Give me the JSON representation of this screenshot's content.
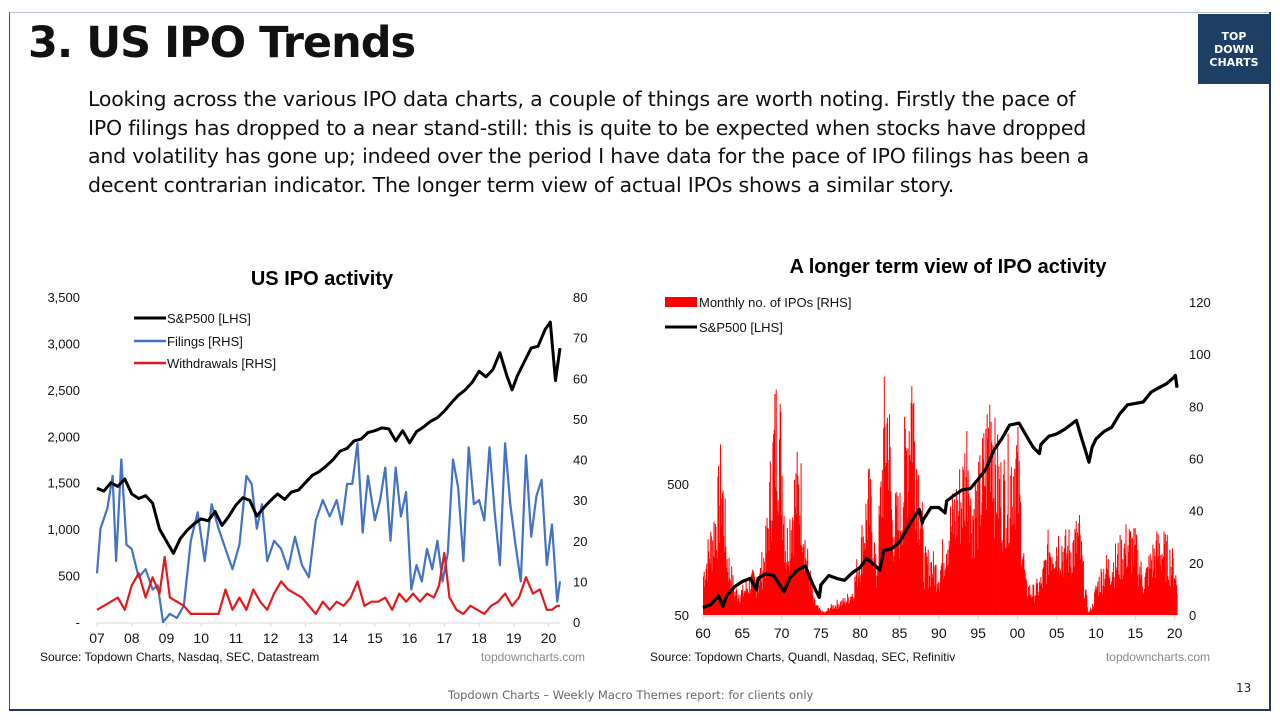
{
  "slide": {
    "title": "3. US IPO Trends",
    "logo_lines": [
      "TOP",
      "DOWN",
      "CHARTS"
    ],
    "intro_lines": [
      "Looking across the various IPO data charts, a couple of things are worth noting.  Firstly the pace of",
      "IPO filings has dropped to a near stand-still: this is quite to be expected when stocks have dropped",
      "and volatility has gone up; indeed over the period I have data for the pace of IPO filings has been a",
      "decent contrarian indicator.  The longer term view of actual IPOs shows a similar story."
    ],
    "footer": "Topdown Charts – Weekly Macro Themes report: for clients only",
    "page_number": "13",
    "colors": {
      "navy": "#1c3f63",
      "sp500": "#000000",
      "filings": "#4472c4",
      "withdrawals": "#e31a1c",
      "ipos": "#ff0000"
    }
  },
  "chart_data": [
    {
      "type": "line",
      "title": "US IPO activity",
      "source": "Source: Topdown Charts, Nasdaq, SEC, Datastream",
      "watermark": "topdowncharts.com",
      "x_ticks": [
        "07",
        "08",
        "09",
        "10",
        "11",
        "12",
        "13",
        "14",
        "15",
        "16",
        "17",
        "18",
        "19",
        "20"
      ],
      "x_range": [
        2007.0,
        2020.33
      ],
      "left_axis": {
        "ticks": [
          "-",
          "500",
          "1,000",
          "1,500",
          "2,000",
          "2,500",
          "3,000",
          "3,500"
        ],
        "tick_values": [
          0,
          500,
          1000,
          1500,
          2000,
          2500,
          3000,
          3500
        ],
        "range": [
          0,
          3500
        ]
      },
      "right_axis": {
        "ticks": [
          "0",
          "10",
          "20",
          "30",
          "40",
          "50",
          "60",
          "70",
          "80"
        ],
        "tick_values": [
          0,
          10,
          20,
          30,
          40,
          50,
          60,
          70,
          80
        ],
        "range": [
          0,
          80
        ]
      },
      "legend": [
        "S&P500 [LHS]",
        "Filings [RHS]",
        "Withdrawals [RHS]"
      ],
      "legend_position": "top-left",
      "series": [
        {
          "name": "S&P500 [LHS]",
          "axis": "left",
          "color": "#000000",
          "x": [
            2007.0,
            2007.2,
            2007.4,
            2007.6,
            2007.8,
            2008.0,
            2008.2,
            2008.4,
            2008.6,
            2008.8,
            2009.0,
            2009.2,
            2009.4,
            2009.6,
            2009.8,
            2010.0,
            2010.2,
            2010.4,
            2010.6,
            2010.8,
            2011.0,
            2011.2,
            2011.4,
            2011.6,
            2011.8,
            2012.0,
            2012.2,
            2012.4,
            2012.6,
            2012.8,
            2013.0,
            2013.2,
            2013.4,
            2013.6,
            2013.8,
            2014.0,
            2014.2,
            2014.4,
            2014.6,
            2014.8,
            2015.0,
            2015.2,
            2015.4,
            2015.6,
            2015.8,
            2016.0,
            2016.2,
            2016.4,
            2016.6,
            2016.8,
            2017.0,
            2017.2,
            2017.4,
            2017.6,
            2017.8,
            2018.0,
            2018.2,
            2018.4,
            2018.6,
            2018.8,
            2018.95,
            2019.1,
            2019.3,
            2019.5,
            2019.7,
            2019.9,
            2020.05,
            2020.2,
            2020.33
          ],
          "values": [
            1440,
            1410,
            1500,
            1460,
            1540,
            1380,
            1330,
            1360,
            1280,
            1000,
            870,
            740,
            900,
            990,
            1060,
            1110,
            1090,
            1190,
            1040,
            1140,
            1260,
            1340,
            1310,
            1140,
            1230,
            1310,
            1380,
            1320,
            1400,
            1420,
            1500,
            1580,
            1620,
            1680,
            1750,
            1840,
            1870,
            1950,
            1970,
            2040,
            2060,
            2090,
            2080,
            1950,
            2060,
            1930,
            2050,
            2100,
            2160,
            2200,
            2270,
            2360,
            2440,
            2500,
            2580,
            2700,
            2640,
            2720,
            2900,
            2650,
            2500,
            2650,
            2800,
            2950,
            2970,
            3150,
            3230,
            2600,
            2950
          ]
        },
        {
          "name": "Filings [RHS]",
          "axis": "right",
          "color": "#4472c4",
          "x": [
            2007.0,
            2007.1,
            2007.3,
            2007.45,
            2007.55,
            2007.7,
            2007.85,
            2008.0,
            2008.2,
            2008.4,
            2008.6,
            2008.75,
            2008.9,
            2009.1,
            2009.3,
            2009.5,
            2009.7,
            2009.9,
            2010.1,
            2010.3,
            2010.5,
            2010.7,
            2010.9,
            2011.1,
            2011.3,
            2011.45,
            2011.6,
            2011.75,
            2011.9,
            2012.1,
            2012.3,
            2012.5,
            2012.7,
            2012.9,
            2013.1,
            2013.3,
            2013.5,
            2013.7,
            2013.9,
            2014.05,
            2014.2,
            2014.35,
            2014.5,
            2014.65,
            2014.8,
            2015.0,
            2015.15,
            2015.3,
            2015.45,
            2015.6,
            2015.75,
            2015.9,
            2016.05,
            2016.2,
            2016.35,
            2016.5,
            2016.65,
            2016.8,
            2016.95,
            2017.1,
            2017.25,
            2017.4,
            2017.55,
            2017.7,
            2017.85,
            2018.0,
            2018.15,
            2018.3,
            2018.45,
            2018.6,
            2018.75,
            2018.9,
            2019.05,
            2019.2,
            2019.35,
            2019.5,
            2019.65,
            2019.8,
            2019.95,
            2020.1,
            2020.25,
            2020.33
          ],
          "values": [
            12,
            23,
            28,
            36,
            15,
            40,
            19,
            18,
            11,
            13,
            8,
            9,
            0,
            2,
            1,
            4,
            20,
            27,
            15,
            29,
            23,
            18,
            13,
            19,
            36,
            34,
            23,
            29,
            15,
            20,
            18,
            13,
            21,
            14,
            11,
            25,
            30,
            26,
            30,
            24,
            34,
            34,
            44,
            22,
            36,
            25,
            30,
            38,
            20,
            38,
            26,
            32,
            8,
            14,
            10,
            18,
            13,
            20,
            10,
            17,
            40,
            33,
            15,
            43,
            29,
            30,
            25,
            43,
            27,
            14,
            44,
            29,
            19,
            10,
            41,
            21,
            31,
            35,
            14,
            24,
            5,
            10
          ]
        },
        {
          "name": "Withdrawals [RHS]",
          "axis": "right",
          "color": "#e31a1c",
          "x": [
            2007.0,
            2007.2,
            2007.4,
            2007.6,
            2007.8,
            2008.0,
            2008.2,
            2008.4,
            2008.6,
            2008.8,
            2008.95,
            2009.1,
            2009.3,
            2009.5,
            2009.7,
            2009.9,
            2010.1,
            2010.3,
            2010.5,
            2010.7,
            2010.9,
            2011.1,
            2011.3,
            2011.5,
            2011.7,
            2011.9,
            2012.1,
            2012.3,
            2012.5,
            2012.7,
            2012.9,
            2013.1,
            2013.3,
            2013.5,
            2013.7,
            2013.9,
            2014.1,
            2014.3,
            2014.5,
            2014.7,
            2014.9,
            2015.1,
            2015.3,
            2015.5,
            2015.7,
            2015.9,
            2016.1,
            2016.3,
            2016.5,
            2016.7,
            2016.85,
            2017.0,
            2017.15,
            2017.35,
            2017.55,
            2017.75,
            2017.95,
            2018.15,
            2018.35,
            2018.55,
            2018.75,
            2018.95,
            2019.15,
            2019.35,
            2019.55,
            2019.75,
            2019.95,
            2020.1,
            2020.25,
            2020.33
          ],
          "values": [
            3,
            4,
            5,
            6,
            3,
            9,
            12,
            6,
            11,
            7,
            16,
            6,
            5,
            4,
            2,
            2,
            2,
            2,
            2,
            8,
            3,
            6,
            3,
            8,
            5,
            3,
            7,
            10,
            8,
            7,
            6,
            4,
            2,
            5,
            3,
            5,
            4,
            6,
            10,
            4,
            5,
            5,
            6,
            3,
            7,
            5,
            7,
            5,
            7,
            6,
            9,
            17,
            6,
            3,
            2,
            4,
            3,
            2,
            4,
            5,
            7,
            4,
            6,
            11,
            7,
            8,
            3,
            3,
            4,
            4
          ]
        }
      ]
    },
    {
      "type": "bar",
      "title": "A longer term view of IPO activity",
      "source": "Source: Topdown Charts, Quandl, Nasdaq, SEC, Refinitiv",
      "watermark": "topdowncharts.com",
      "x_ticks": [
        "60",
        "65",
        "70",
        "75",
        "80",
        "85",
        "90",
        "95",
        "00",
        "05",
        "10",
        "15",
        "20"
      ],
      "x_range": [
        1960.0,
        2020.3
      ],
      "left_axis": {
        "ticks": [
          "50",
          "500"
        ],
        "tick_values": [
          50,
          500
        ],
        "scale": "log",
        "range": [
          50,
          5000
        ]
      },
      "right_axis": {
        "ticks": [
          "0",
          "20",
          "40",
          "60",
          "80",
          "100",
          "120"
        ],
        "tick_values": [
          0,
          20,
          40,
          60,
          80,
          100,
          120
        ],
        "range": [
          0,
          130
        ]
      },
      "legend": [
        "Monthly no. of IPOs [RHS]",
        "S&P500 [LHS]"
      ],
      "legend_position": "top-left",
      "series": [
        {
          "name": "Monthly no. of IPOs [RHS]",
          "axis": "right",
          "color": "#ff0000",
          "kind": "bar",
          "x": [
            1960,
            1961,
            1961.8,
            1962.3,
            1963,
            1964,
            1965,
            1966,
            1967,
            1968,
            1969,
            1969.5,
            1970,
            1970.5,
            1971,
            1971.8,
            1972.5,
            1973,
            1974,
            1974.8,
            1975.5,
            1976,
            1977,
            1978,
            1979,
            1980,
            1981,
            1981.5,
            1982,
            1983,
            1983.5,
            1984,
            1985,
            1986,
            1986.5,
            1987,
            1987.8,
            1988,
            1989,
            1990,
            1991,
            1992,
            1993,
            1993.7,
            1994,
            1995,
            1996,
            1996.6,
            1997,
            1998,
            1999,
            1999.7,
            2000,
            2000.6,
            2001,
            2002,
            2003,
            2004,
            2005,
            2006,
            2007,
            2007.8,
            2008.5,
            2009,
            2009.5,
            2010,
            2011,
            2012,
            2013,
            2014,
            2015,
            2016,
            2017,
            2018,
            2019,
            2020,
            2020.3
          ],
          "values": [
            18,
            32,
            45,
            60,
            25,
            10,
            10,
            15,
            14,
            30,
            75,
            86,
            65,
            28,
            40,
            55,
            52,
            28,
            6,
            2,
            1,
            3,
            5,
            6,
            10,
            28,
            50,
            40,
            16,
            78,
            88,
            40,
            42,
            80,
            100,
            72,
            40,
            22,
            22,
            18,
            35,
            45,
            55,
            75,
            45,
            50,
            70,
            95,
            65,
            52,
            60,
            70,
            62,
            30,
            12,
            10,
            14,
            30,
            32,
            28,
            30,
            35,
            12,
            1,
            4,
            12,
            20,
            22,
            26,
            32,
            28,
            14,
            24,
            30,
            26,
            20,
            8
          ]
        },
        {
          "name": "S&P500 [LHS]",
          "axis": "left",
          "color": "#000000",
          "kind": "line",
          "x": [
            1960,
            1961,
            1962,
            1962.5,
            1963,
            1964,
            1965,
            1966,
            1966.8,
            1967,
            1968,
            1969,
            1970.3,
            1971,
            1972,
            1973,
            1974,
            1974.8,
            1975,
            1976,
            1977,
            1978,
            1979,
            1980,
            1980.8,
            1981.5,
            1982.5,
            1983,
            1984,
            1985,
            1986,
            1987.5,
            1987.9,
            1988,
            1989,
            1990,
            1990.8,
            1991,
            1992,
            1993,
            1994,
            1995,
            1996,
            1997,
            1998,
            1999,
            2000.2,
            2001,
            2002,
            2002.8,
            2003,
            2004,
            2005,
            2006,
            2007.5,
            2008,
            2009.1,
            2009.5,
            2010,
            2011,
            2012,
            2013,
            2014,
            2015,
            2016,
            2017,
            2018,
            2019,
            2019.8,
            2020.1,
            2020.3
          ],
          "values": [
            57,
            60,
            70,
            58,
            70,
            82,
            90,
            95,
            78,
            95,
            103,
            100,
            75,
            95,
            110,
            118,
            85,
            68,
            85,
            100,
            95,
            92,
            105,
            115,
            135,
            125,
            110,
            155,
            160,
            180,
            230,
            320,
            250,
            265,
            330,
            330,
            300,
            370,
            410,
            450,
            460,
            540,
            650,
            900,
            1100,
            1400,
            1450,
            1200,
            950,
            850,
            1000,
            1150,
            1200,
            1300,
            1520,
            1200,
            730,
            950,
            1100,
            1250,
            1350,
            1700,
            2000,
            2050,
            2100,
            2500,
            2700,
            2900,
            3200,
            3350,
            2700
          ]
        }
      ]
    }
  ]
}
